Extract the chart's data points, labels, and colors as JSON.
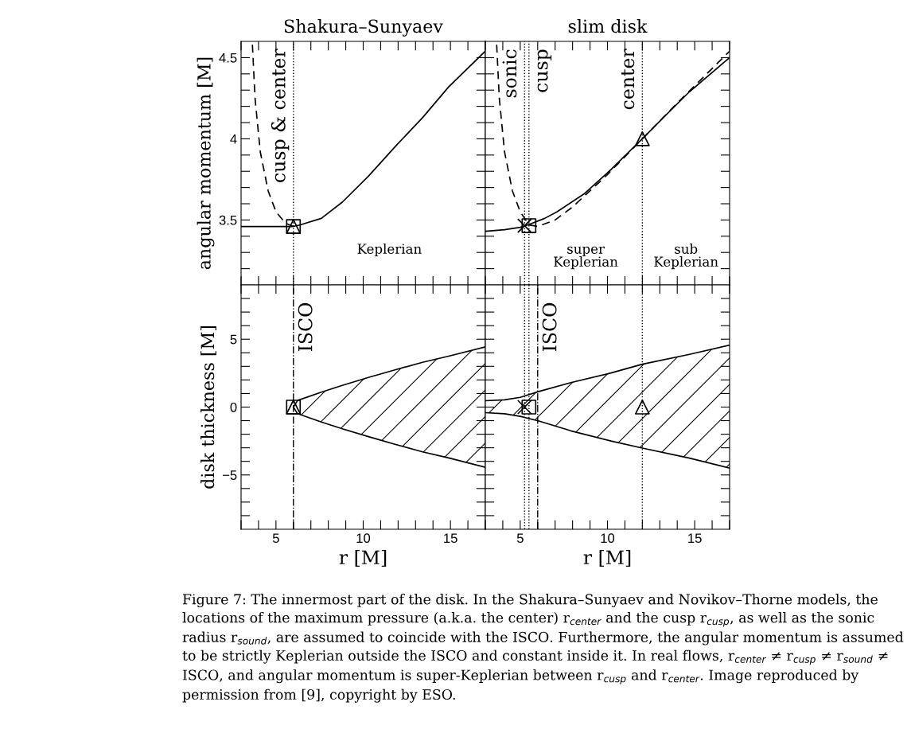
{
  "chart_data": [
    {
      "type": "line",
      "title": "Shakura–Sunyaev",
      "ylabel": "angular momentum [M]",
      "tick_labels": "y",
      "xlim": [
        3,
        17
      ],
      "ylim": [
        3.1,
        4.6
      ],
      "xticks": [
        {
          "value": 3,
          "label": null
        },
        {
          "value": 4,
          "label": null
        },
        5,
        {
          "value": 6,
          "label": null
        },
        {
          "value": 7,
          "label": null
        },
        {
          "value": 8,
          "label": null
        },
        {
          "value": 9,
          "label": null
        },
        10,
        {
          "value": 11,
          "label": null
        },
        {
          "value": 12,
          "label": null
        },
        {
          "value": 13,
          "label": null
        },
        {
          "value": 14,
          "label": null
        },
        15,
        {
          "value": 16,
          "label": null
        },
        {
          "value": 17,
          "label": null
        }
      ],
      "yticks": [
        {
          "value": 3.2,
          "label": null
        },
        {
          "value": 3.3,
          "label": null
        },
        {
          "value": 3.4,
          "label": null
        },
        3.5,
        {
          "value": 3.6,
          "label": null
        },
        {
          "value": 3.7,
          "label": null
        },
        {
          "value": 3.8,
          "label": null
        },
        {
          "value": 3.9,
          "label": null
        },
        4,
        {
          "value": 4.1,
          "label": null
        },
        {
          "value": 4.2,
          "label": null
        },
        {
          "value": 4.3,
          "label": null
        },
        {
          "value": 4.4,
          "label": null
        },
        4.5
      ],
      "series": [
        {
          "line_style": "solid",
          "color": "#000000",
          "x": [
            3,
            4,
            5,
            6,
            6.4,
            7.6,
            8.8,
            10.3,
            11.9,
            13.4,
            14.9,
            17
          ],
          "values": [
            3.46,
            3.46,
            3.46,
            3.46,
            3.47,
            3.51,
            3.61,
            3.77,
            3.96,
            4.13,
            4.32,
            4.54
          ]
        },
        {
          "line_style": "dashed",
          "color": "#000000",
          "x": [
            3.65,
            3.8,
            4.1,
            4.55,
            5.0,
            5.55,
            6
          ],
          "values": [
            4.58,
            4.25,
            3.92,
            3.68,
            3.55,
            3.48,
            3.46
          ]
        },
        {
          "type": "scatter",
          "marker": "square",
          "color": "#000000",
          "x": [
            6
          ],
          "values": [
            3.46
          ]
        },
        {
          "type": "scatter",
          "marker": "triangle",
          "color": "#000000",
          "x": [
            6
          ],
          "values": [
            3.46
          ]
        }
      ],
      "ref_lines": [
        {
          "axis": "x",
          "value": 6,
          "label": "cusp & center",
          "line_style": "dotted",
          "color": "#000000"
        }
      ],
      "annotations": [
        "Keplerian"
      ]
    },
    {
      "type": "line",
      "title": "slim disk",
      "tick_labels": false,
      "xlim": [
        3,
        17
      ],
      "ylim": [
        3.1,
        4.6
      ],
      "xticks": [
        {
          "value": 3,
          "label": null
        },
        {
          "value": 4,
          "label": null
        },
        5,
        {
          "value": 6,
          "label": null
        },
        {
          "value": 7,
          "label": null
        },
        {
          "value": 8,
          "label": null
        },
        {
          "value": 9,
          "label": null
        },
        10,
        {
          "value": 11,
          "label": null
        },
        {
          "value": 12,
          "label": null
        },
        {
          "value": 13,
          "label": null
        },
        {
          "value": 14,
          "label": null
        },
        15,
        {
          "value": 16,
          "label": null
        },
        {
          "value": 17,
          "label": null
        }
      ],
      "yticks": [
        {
          "value": 3.2,
          "label": null
        },
        {
          "value": 3.3,
          "label": null
        },
        {
          "value": 3.4,
          "label": null
        },
        3.5,
        {
          "value": 3.6,
          "label": null
        },
        {
          "value": 3.7,
          "label": null
        },
        {
          "value": 3.8,
          "label": null
        },
        {
          "value": 3.9,
          "label": null
        },
        4,
        {
          "value": 4.1,
          "label": null
        },
        {
          "value": 4.2,
          "label": null
        },
        {
          "value": 4.3,
          "label": null
        },
        {
          "value": 4.4,
          "label": null
        },
        4.5
      ],
      "series": [
        {
          "line_style": "solid",
          "color": "#000000",
          "x": [
            3,
            4.1,
            5,
            5.45,
            6.4,
            7.1,
            8.65,
            10.2,
            11.7,
            12,
            13.2,
            14.7,
            17
          ],
          "values": [
            3.43,
            3.44,
            3.455,
            3.47,
            3.51,
            3.55,
            3.66,
            3.81,
            3.97,
            4.0,
            4.13,
            4.29,
            4.5
          ]
        },
        {
          "line_style": "dashed",
          "color": "#000000",
          "x": [
            3.65,
            3.8,
            4.1,
            4.55,
            5.0,
            5.5,
            6,
            7,
            8,
            10,
            12,
            14,
            17
          ],
          "values": [
            4.58,
            4.25,
            3.92,
            3.68,
            3.55,
            3.47,
            3.46,
            3.5,
            3.58,
            3.78,
            4.0,
            4.22,
            4.54
          ]
        },
        {
          "type": "scatter",
          "marker": "cross",
          "color": "#000000",
          "x": [
            5.25
          ],
          "values": [
            3.465
          ]
        },
        {
          "type": "scatter",
          "marker": "square",
          "color": "#000000",
          "x": [
            5.5
          ],
          "values": [
            3.465
          ]
        },
        {
          "type": "scatter",
          "marker": "triangle",
          "color": "#000000",
          "x": [
            12
          ],
          "values": [
            4.0
          ]
        }
      ],
      "ref_lines": [
        {
          "axis": "x",
          "value": 5.25,
          "label": "sonic",
          "line_style": "dotted",
          "color": "#000000"
        },
        {
          "axis": "x",
          "value": 5.5,
          "label": "cusp",
          "line_style": "dotted",
          "color": "#000000"
        },
        {
          "axis": "x",
          "value": 12,
          "label": "center",
          "line_style": "dotted",
          "color": "#000000"
        }
      ],
      "annotations": [
        "super\nKeplerian",
        "sub\nKeplerian"
      ]
    },
    {
      "type": "line",
      "xlabel": "r [M]",
      "ylabel": "disk thickness [M]",
      "xlim": [
        3,
        17
      ],
      "ylim": [
        -9,
        9
      ],
      "xticks": [
        {
          "value": 3,
          "label": null
        },
        {
          "value": 4,
          "label": null
        },
        5,
        {
          "value": 6,
          "label": null
        },
        {
          "value": 7,
          "label": null
        },
        {
          "value": 8,
          "label": null
        },
        {
          "value": 9,
          "label": null
        },
        10,
        {
          "value": 11,
          "label": null
        },
        {
          "value": 12,
          "label": null
        },
        {
          "value": 13,
          "label": null
        },
        {
          "value": 14,
          "label": null
        },
        15,
        {
          "value": 16,
          "label": null
        },
        {
          "value": 17,
          "label": null
        }
      ],
      "yticks": [
        {
          "value": -8,
          "label": null
        },
        {
          "value": -7,
          "label": null
        },
        {
          "value": -6,
          "label": null
        },
        {
          "value": -5,
          "label": "−5"
        },
        {
          "value": -4,
          "label": null
        },
        {
          "value": -3,
          "label": null
        },
        {
          "value": -2,
          "label": null
        },
        {
          "value": -1,
          "label": null
        },
        0,
        {
          "value": 1,
          "label": null
        },
        {
          "value": 2,
          "label": null
        },
        {
          "value": 3,
          "label": null
        },
        {
          "value": 4,
          "label": null
        },
        5,
        {
          "value": 6,
          "label": null
        },
        {
          "value": 7,
          "label": null
        },
        {
          "value": 8,
          "label": null
        }
      ],
      "series": [
        {
          "line_style": "solid",
          "color": "#000000",
          "x": [
            6,
            6.24,
            7.6,
            8.8,
            10.3,
            11.9,
            13.4,
            14.9,
            17
          ],
          "values": [
            0,
            0.49,
            1.1,
            1.6,
            2.18,
            2.77,
            3.3,
            3.75,
            4.43
          ]
        },
        {
          "line_style": "solid",
          "color": "#000000",
          "x": [
            6,
            6.24,
            7.6,
            8.8,
            10.3,
            11.9,
            13.4,
            14.9,
            17
          ],
          "values": [
            0,
            -0.49,
            -1.1,
            -1.6,
            -2.18,
            -2.77,
            -3.3,
            -3.75,
            -4.43
          ]
        },
        {
          "type": "scatter",
          "marker": "square",
          "color": "#000000",
          "x": [
            6
          ],
          "values": [
            0
          ]
        },
        {
          "type": "scatter",
          "marker": "triangle",
          "color": "#000000",
          "x": [
            6
          ],
          "values": [
            0
          ]
        }
      ],
      "ref_lines": [
        {
          "axis": "x",
          "value": 6,
          "label": "ISCO",
          "line_style": "dashdot",
          "color": "#000000"
        }
      ]
    },
    {
      "type": "line",
      "xlabel": "r [M]",
      "tick_labels": "x",
      "xlim": [
        3,
        17
      ],
      "ylim": [
        -9,
        9
      ],
      "xticks": [
        {
          "value": 3,
          "label": null
        },
        {
          "value": 4,
          "label": null
        },
        5,
        {
          "value": 6,
          "label": null
        },
        {
          "value": 7,
          "label": null
        },
        {
          "value": 8,
          "label": null
        },
        {
          "value": 9,
          "label": null
        },
        10,
        {
          "value": 11,
          "label": null
        },
        {
          "value": 12,
          "label": null
        },
        {
          "value": 13,
          "label": null
        },
        {
          "value": 14,
          "label": null
        },
        15,
        {
          "value": 16,
          "label": null
        },
        {
          "value": 17,
          "label": null
        }
      ],
      "yticks": [
        {
          "value": -8,
          "label": null
        },
        {
          "value": -7,
          "label": null
        },
        {
          "value": -6,
          "label": null
        },
        {
          "value": -5,
          "label": null
        },
        {
          "value": -4,
          "label": null
        },
        {
          "value": -3,
          "label": null
        },
        {
          "value": -2,
          "label": null
        },
        {
          "value": -1,
          "label": null
        },
        {
          "value": 0,
          "label": null
        },
        {
          "value": 1,
          "label": null
        },
        {
          "value": 2,
          "label": null
        },
        {
          "value": 3,
          "label": null
        },
        {
          "value": 4,
          "label": null
        },
        {
          "value": 5,
          "label": null
        },
        {
          "value": 6,
          "label": null
        },
        {
          "value": 7,
          "label": null
        },
        {
          "value": 8,
          "label": null
        }
      ],
      "series": [
        {
          "line_style": "solid",
          "color": "#000000",
          "x": [
            3,
            4.1,
            5,
            6.07,
            7.9,
            10.2,
            12,
            14.7,
            17
          ],
          "values": [
            0.47,
            0.53,
            0.72,
            1.15,
            1.8,
            2.51,
            3.16,
            3.88,
            4.56
          ]
        },
        {
          "line_style": "solid",
          "color": "#000000",
          "x": [
            3,
            4.1,
            5,
            6.07,
            7.9,
            10.2,
            12,
            14.7,
            17
          ],
          "values": [
            -0.41,
            -0.49,
            -0.68,
            -1.03,
            -1.75,
            -2.5,
            -3.02,
            -3.76,
            -4.5
          ]
        },
        {
          "type": "scatter",
          "marker": "cross",
          "color": "#000000",
          "x": [
            5.25
          ],
          "values": [
            0
          ]
        },
        {
          "type": "scatter",
          "marker": "square",
          "color": "#000000",
          "x": [
            5.5
          ],
          "values": [
            0
          ]
        },
        {
          "type": "scatter",
          "marker": "triangle",
          "color": "#000000",
          "x": [
            12
          ],
          "values": [
            0
          ]
        }
      ],
      "ref_lines": [
        {
          "axis": "x",
          "value": 5.25,
          "label": null,
          "line_style": "dotted",
          "color": "#000000"
        },
        {
          "axis": "x",
          "value": 5.5,
          "label": null,
          "line_style": "dotted",
          "color": "#000000"
        },
        {
          "axis": "x",
          "value": 6,
          "label": "ISCO",
          "line_style": "dashdot",
          "color": "#000000"
        },
        {
          "axis": "x",
          "value": 12,
          "label": null,
          "line_style": "dotted",
          "color": "#000000"
        }
      ],
      "annotations": [
        "Figure 7: The innermost part of the disk. In the Shakura–Sunyaev and Novikov–Thorne models, the locations of the maximum pressure (a.k.a. the center) r$_{center}$ and the cusp r$_{cusp}$, as well as the sonic radius r$_{sound}$, are assumed to coincide with the ISCO. Furthermore, the angular momentum is assumed to be strictly Keplerian outside the ISCO and constant inside it. In real flows, r$_{center}$ ≠ r$_{cusp}$ ≠ r$_{sound}$ ≠ ISCO, and angular momentum is super-Keplerian between r$_{cusp}$ and r$_{center}$. Image reproduced by permission from [9], copyright by ESO."
      ]
    }
  ]
}
